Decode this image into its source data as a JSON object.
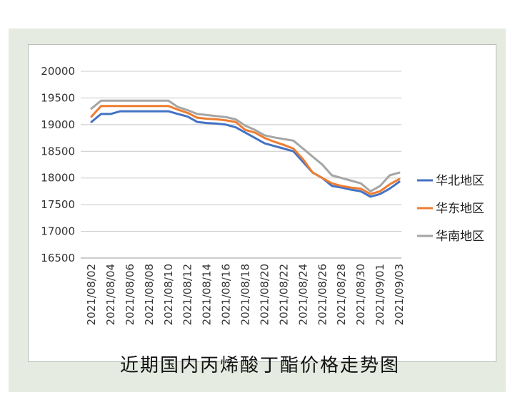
{
  "caption": "近期国内丙烯酸丁酯价格走势图",
  "chart_data": {
    "type": "line",
    "title": "",
    "xlabel": "",
    "ylabel": "",
    "ylim": [
      16500,
      20000
    ],
    "yticks": [
      16500,
      17000,
      17500,
      18000,
      18500,
      19000,
      19500,
      20000
    ],
    "grid": "horizontal",
    "legend_position": "right",
    "x": [
      "2021/08/02",
      "2021/08/03",
      "2021/08/04",
      "2021/08/05",
      "2021/08/06",
      "2021/08/07",
      "2021/08/08",
      "2021/08/09",
      "2021/08/10",
      "2021/08/11",
      "2021/08/12",
      "2021/08/13",
      "2021/08/14",
      "2021/08/15",
      "2021/08/16",
      "2021/08/17",
      "2021/08/18",
      "2021/08/19",
      "2021/08/20",
      "2021/08/21",
      "2021/08/22",
      "2021/08/23",
      "2021/08/24",
      "2021/08/25",
      "2021/08/26",
      "2021/08/27",
      "2021/08/28",
      "2021/08/29",
      "2021/08/30",
      "2021/08/31",
      "2021/09/01",
      "2021/09/02",
      "2021/09/03"
    ],
    "x_tick_labels": [
      "2021/08/02",
      "2021/08/04",
      "2021/08/06",
      "2021/08/08",
      "2021/08/10",
      "2021/08/12",
      "2021/08/14",
      "2021/08/16",
      "2021/08/18",
      "2021/08/20",
      "2021/08/22",
      "2021/08/24",
      "2021/08/26",
      "2021/08/28",
      "2021/08/30",
      "2021/09/01",
      "2021/09/03"
    ],
    "series": [
      {
        "name": "华北地区",
        "color": "#4472c4",
        "values": [
          19050,
          19200,
          19200,
          19250,
          19250,
          19250,
          19250,
          19250,
          19250,
          19200,
          19150,
          19050,
          19030,
          19020,
          19000,
          18950,
          18850,
          18750,
          18650,
          18600,
          18550,
          18500,
          18300,
          18100,
          18000,
          17850,
          17820,
          17780,
          17750,
          17650,
          17700,
          17800,
          17930
        ]
      },
      {
        "name": "华东地区",
        "color": "#ed7d31",
        "values": [
          19150,
          19350,
          19350,
          19350,
          19350,
          19350,
          19350,
          19350,
          19350,
          19280,
          19220,
          19130,
          19110,
          19100,
          19080,
          19050,
          18900,
          18850,
          18750,
          18680,
          18620,
          18550,
          18350,
          18100,
          18000,
          17900,
          17850,
          17820,
          17800,
          17700,
          17750,
          17880,
          17980
        ]
      },
      {
        "name": "华南地区",
        "color": "#a5a5a5",
        "values": [
          19300,
          19450,
          19450,
          19450,
          19450,
          19450,
          19450,
          19450,
          19450,
          19330,
          19270,
          19200,
          19180,
          19160,
          19140,
          19100,
          18980,
          18900,
          18800,
          18760,
          18730,
          18700,
          18550,
          18400,
          18250,
          18050,
          18000,
          17950,
          17900,
          17750,
          17850,
          18050,
          18100
        ]
      }
    ]
  }
}
